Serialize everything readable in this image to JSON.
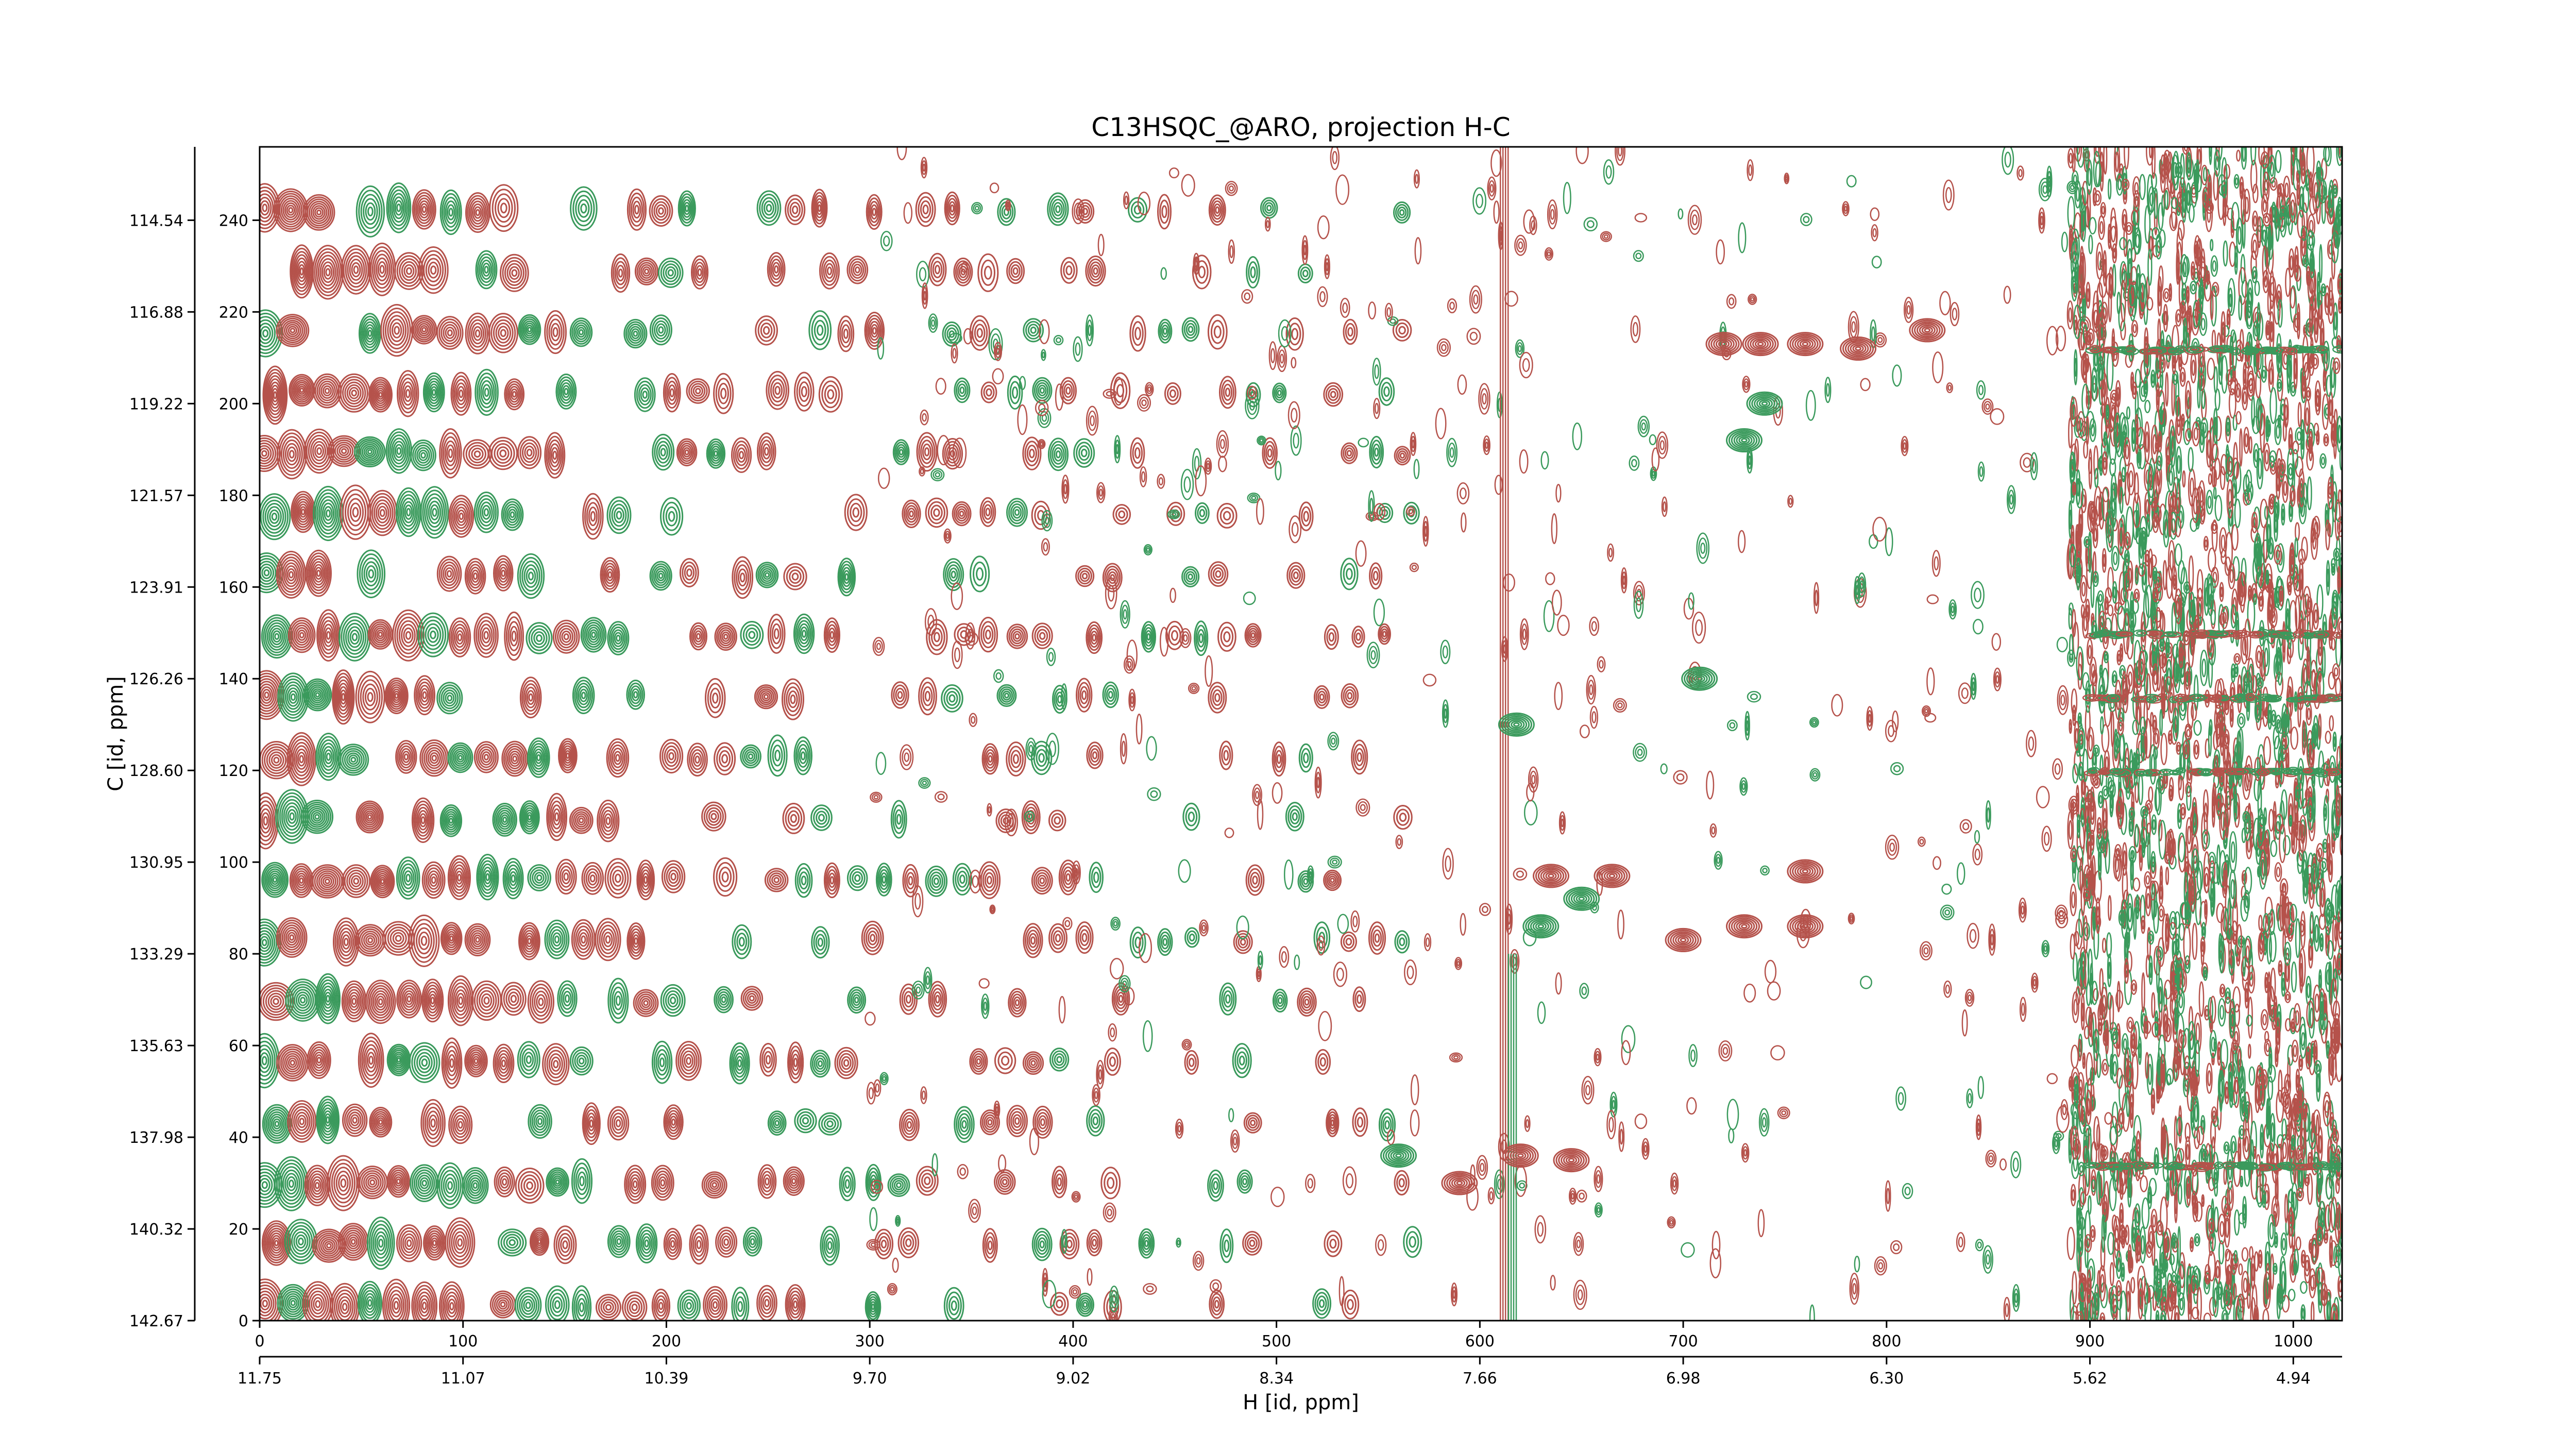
{
  "chart_data": {
    "type": "contour",
    "title": "C13HSQC_@ARO, projection H-C",
    "xlabel": "H [id, ppm]",
    "ylabel": "C [id, ppm]",
    "x_index_range": [
      0,
      1024
    ],
    "y_index_range": [
      0,
      256
    ],
    "x_index_ticks": [
      0,
      100,
      200,
      300,
      400,
      500,
      600,
      700,
      800,
      900,
      1000
    ],
    "y_index_ticks": [
      0,
      20,
      40,
      60,
      80,
      100,
      120,
      140,
      160,
      180,
      200,
      220,
      240
    ],
    "x_ppm_ticks": [
      "11.75",
      "11.07",
      "10.39",
      "9.70",
      "9.02",
      "8.34",
      "7.66",
      "6.98",
      "6.30",
      "5.62",
      "4.94"
    ],
    "y_ppm_ticks": [
      "142.67",
      "140.32",
      "137.98",
      "135.63",
      "133.29",
      "130.95",
      "128.60",
      "126.26",
      "123.91",
      "121.57",
      "119.22",
      "116.88",
      "114.54"
    ],
    "colors": {
      "positive": "#b5524b",
      "negative": "#3a9a5c"
    },
    "vertical_streaks": [
      {
        "x_index": 612,
        "y_range": [
          0,
          256
        ],
        "color": "positive"
      },
      {
        "x_index": 616,
        "y_range": [
          0,
          80
        ],
        "color": "negative"
      }
    ],
    "peaks": [
      {
        "x_index": 720,
        "y_index": 213,
        "color": "positive"
      },
      {
        "x_index": 738,
        "y_index": 213,
        "color": "positive"
      },
      {
        "x_index": 760,
        "y_index": 213,
        "color": "positive"
      },
      {
        "x_index": 740,
        "y_index": 200,
        "color": "negative"
      },
      {
        "x_index": 730,
        "y_index": 192,
        "color": "negative"
      },
      {
        "x_index": 786,
        "y_index": 212,
        "color": "positive"
      },
      {
        "x_index": 820,
        "y_index": 216,
        "color": "positive"
      },
      {
        "x_index": 700,
        "y_index": 83,
        "color": "positive"
      },
      {
        "x_index": 730,
        "y_index": 86,
        "color": "positive"
      },
      {
        "x_index": 760,
        "y_index": 86,
        "color": "positive"
      },
      {
        "x_index": 665,
        "y_index": 97,
        "color": "positive"
      },
      {
        "x_index": 635,
        "y_index": 97,
        "color": "positive"
      },
      {
        "x_index": 630,
        "y_index": 86,
        "color": "negative"
      },
      {
        "x_index": 650,
        "y_index": 92,
        "color": "negative"
      },
      {
        "x_index": 760,
        "y_index": 98,
        "color": "positive"
      },
      {
        "x_index": 620,
        "y_index": 36,
        "color": "positive"
      },
      {
        "x_index": 645,
        "y_index": 35,
        "color": "positive"
      },
      {
        "x_index": 590,
        "y_index": 30,
        "color": "positive"
      },
      {
        "x_index": 560,
        "y_index": 36,
        "color": "negative"
      },
      {
        "x_index": 618,
        "y_index": 130,
        "color": "negative"
      },
      {
        "x_index": 708,
        "y_index": 140,
        "color": "negative"
      }
    ]
  }
}
